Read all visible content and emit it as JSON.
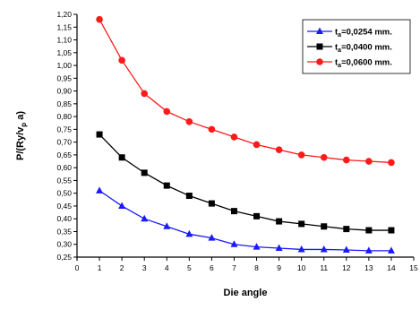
{
  "chart_data": {
    "type": "line",
    "title": "",
    "xlabel": "Die angle",
    "ylabel": "P/(Ry/v_p a)",
    "xlim": [
      0,
      15
    ],
    "ylim": [
      0.25,
      1.2
    ],
    "x_ticks": [
      0,
      1,
      2,
      3,
      4,
      5,
      6,
      7,
      8,
      9,
      10,
      11,
      12,
      13,
      14,
      15
    ],
    "y_ticks": [
      "1,20",
      "1,15",
      "1,10",
      "1,05",
      "1,00",
      "0,95",
      "0,90",
      "0,85",
      "0,80",
      "0,75",
      "0,70",
      "0,65",
      "0,60",
      "0,55",
      "0,50",
      "0,45",
      "0,40",
      "0,35",
      "0,30",
      "0,25"
    ],
    "grid": false,
    "legend_position": "top-right",
    "x": [
      1,
      2,
      3,
      4,
      5,
      6,
      7,
      8,
      9,
      10,
      11,
      12,
      13,
      14
    ],
    "series": [
      {
        "name": "t_a=0,0254 mm.",
        "legend_main": "t",
        "legend_sub": "a",
        "legend_rest": "=0,0254 mm.",
        "color": "#1a1aff",
        "marker": "triangle",
        "values": [
          0.51,
          0.45,
          0.4,
          0.37,
          0.34,
          0.325,
          0.3,
          0.29,
          0.285,
          0.28,
          0.28,
          0.278,
          0.275,
          0.275
        ]
      },
      {
        "name": "t_a=0,0400 mm.",
        "legend_main": "t",
        "legend_sub": "a",
        "legend_rest": "=0,0400 mm.",
        "color": "#000000",
        "marker": "square",
        "values": [
          0.73,
          0.64,
          0.58,
          0.53,
          0.49,
          0.46,
          0.43,
          0.41,
          0.39,
          0.38,
          0.37,
          0.36,
          0.355,
          0.355
        ]
      },
      {
        "name": "t_a=0,0600 mm.",
        "legend_main": "t",
        "legend_sub": "a",
        "legend_rest": "=0,0600 mm.",
        "color": "#ff1a1a",
        "marker": "circle",
        "values": [
          1.18,
          1.02,
          0.89,
          0.82,
          0.78,
          0.75,
          0.72,
          0.69,
          0.67,
          0.65,
          0.64,
          0.63,
          0.625,
          0.62
        ]
      }
    ]
  }
}
